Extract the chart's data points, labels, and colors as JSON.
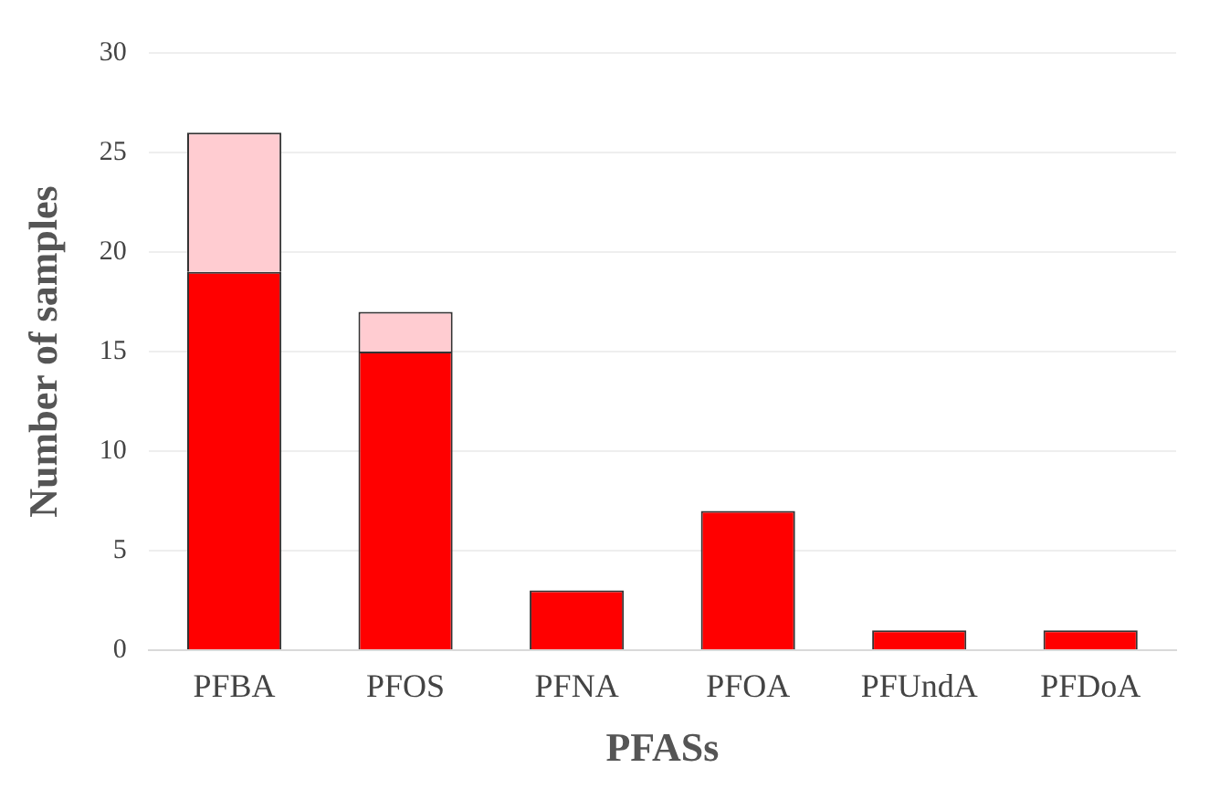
{
  "chart_data": {
    "type": "bar",
    "xlabel": "PFASs",
    "ylabel": "Number of samples",
    "categories": [
      "PFBA",
      "PFOS",
      "PFNA",
      "PFOA",
      "PFUndA",
      "PFDoA"
    ],
    "stacked": true,
    "series": [
      {
        "color": "#ff0000",
        "values": [
          19,
          15,
          3,
          7,
          1,
          1
        ]
      },
      {
        "color": "#ffccd1",
        "values": [
          7,
          2,
          0,
          0,
          0,
          0
        ]
      }
    ],
    "ylim": [
      0,
      30
    ],
    "yticks": [
      0,
      5,
      10,
      15,
      20,
      25,
      30
    ],
    "grid": "y",
    "legend": false
  }
}
